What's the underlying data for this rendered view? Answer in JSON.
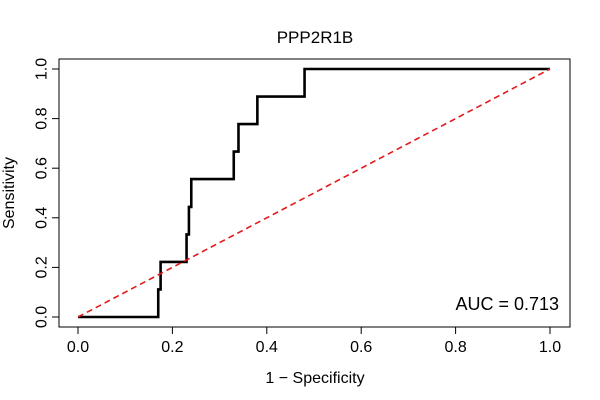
{
  "chart_data": {
    "type": "line",
    "title": "PPP2R1B",
    "xlabel": "1 − Specificity",
    "ylabel": "Sensitivity",
    "xlim": [
      0,
      1
    ],
    "ylim": [
      0,
      1
    ],
    "x_ticks": [
      0.0,
      0.2,
      0.4,
      0.6,
      0.8,
      1.0
    ],
    "x_tick_labels": [
      "0.0",
      "0.2",
      "0.4",
      "0.6",
      "0.8",
      "1.0"
    ],
    "y_ticks": [
      0.0,
      0.2,
      0.4,
      0.6,
      0.8,
      1.0
    ],
    "y_tick_labels": [
      "0.0",
      "0.2",
      "0.4",
      "0.6",
      "0.8",
      "1.0"
    ],
    "grid": false,
    "annotation": "AUC = 0.713",
    "series": [
      {
        "name": "ROC curve",
        "color": "#000000",
        "style": "solid",
        "x": [
          0.0,
          0.17,
          0.17,
          0.175,
          0.175,
          0.23,
          0.23,
          0.235,
          0.235,
          0.24,
          0.24,
          0.33,
          0.33,
          0.34,
          0.34,
          0.38,
          0.38,
          0.48,
          0.48,
          1.0
        ],
        "y": [
          0.0,
          0.0,
          0.111,
          0.111,
          0.222,
          0.222,
          0.333,
          0.333,
          0.444,
          0.444,
          0.556,
          0.556,
          0.667,
          0.667,
          0.778,
          0.778,
          0.889,
          0.889,
          1.0,
          1.0
        ]
      },
      {
        "name": "Reference diagonal",
        "color": "#e31a1c",
        "style": "dashed",
        "x": [
          0.0,
          1.0
        ],
        "y": [
          0.0,
          1.0
        ]
      }
    ]
  }
}
